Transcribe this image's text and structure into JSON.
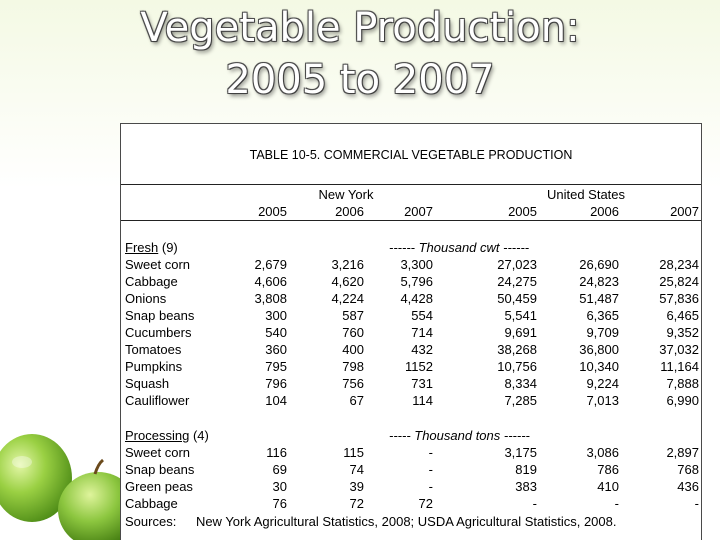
{
  "title_line1": "Vegetable Production:",
  "title_line2": "2005 to 2007",
  "table": {
    "caption": "TABLE 10-5.  COMMERCIAL VEGETABLE PRODUCTION",
    "group_ny": "New York",
    "group_us": "United States",
    "years": [
      "2005",
      "2006",
      "2007",
      "2005",
      "2006",
      "2007"
    ],
    "fresh": {
      "label": "Fresh",
      "note": "(9)",
      "unit": "------ Thousand cwt ------",
      "rows": [
        {
          "name": "Sweet corn",
          "vals": [
            "2,679",
            "3,216",
            "3,300",
            "27,023",
            "26,690",
            "28,234"
          ]
        },
        {
          "name": "Cabbage",
          "vals": [
            "4,606",
            "4,620",
            "5,796",
            "24,275",
            "24,823",
            "25,824"
          ]
        },
        {
          "name": "Onions",
          "vals": [
            "3,808",
            "4,224",
            "4,428",
            "50,459",
            "51,487",
            "57,836"
          ]
        },
        {
          "name": "Snap beans",
          "vals": [
            "300",
            "587",
            "554",
            "5,541",
            "6,365",
            "6,465"
          ]
        },
        {
          "name": "Cucumbers",
          "vals": [
            "540",
            "760",
            "714",
            "9,691",
            "9,709",
            "9,352"
          ]
        },
        {
          "name": "Tomatoes",
          "vals": [
            "360",
            "400",
            "432",
            "38,268",
            "36,800",
            "37,032"
          ]
        },
        {
          "name": "Pumpkins",
          "vals": [
            "795",
            "798",
            "1152",
            "10,756",
            "10,340",
            "11,164"
          ]
        },
        {
          "name": "Squash",
          "vals": [
            "796",
            "756",
            "731",
            "8,334",
            "9,224",
            "7,888"
          ]
        },
        {
          "name": "Cauliflower",
          "vals": [
            "104",
            "67",
            "114",
            "7,285",
            "7,013",
            "6,990"
          ]
        }
      ]
    },
    "processing": {
      "label": "Processing",
      "note": "(4)",
      "unit": "----- Thousand tons ------",
      "rows": [
        {
          "name": "Sweet corn",
          "vals": [
            "116",
            "115",
            "-",
            "3,175",
            "3,086",
            "2,897"
          ]
        },
        {
          "name": "Snap beans",
          "vals": [
            "69",
            "74",
            "-",
            "819",
            "786",
            "768"
          ]
        },
        {
          "name": "Green peas",
          "vals": [
            "30",
            "39",
            "-",
            "383",
            "410",
            "436"
          ]
        },
        {
          "name": "Cabbage",
          "vals": [
            "76",
            "72",
            "72",
            "-",
            "-",
            "-"
          ]
        }
      ]
    },
    "sources_label": "Sources:",
    "sources_text": "New York Agricultural Statistics, 2008; USDA Agricultural Statistics, 2008."
  },
  "colors": {
    "apple": "#8cc63f",
    "apple_dark": "#5a9a1e",
    "rule": "#222222"
  }
}
